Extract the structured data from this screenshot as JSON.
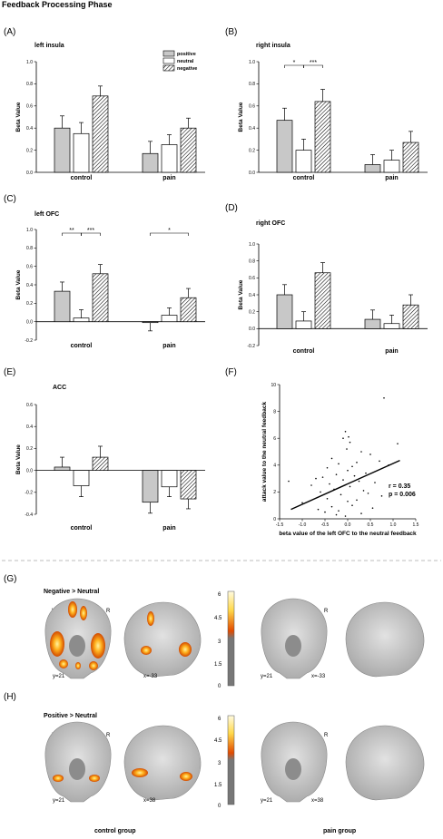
{
  "figure_title": "Feedback Processing  Phase",
  "colors": {
    "positive": "#c8c8c8",
    "neutral": "#ffffff",
    "negative": "hatched",
    "activation_low": "#d24a00",
    "activation_high": "#fff6b0"
  },
  "legend": [
    "positive",
    "neutral",
    "negative"
  ],
  "chart_data": [
    {
      "panel": "(A)",
      "type": "bar",
      "title": "left insula",
      "ylabel": "Beta Value",
      "ylim": [
        0,
        1.0
      ],
      "yticks": [
        "0.0",
        "0.2",
        "0.4",
        "0.6",
        "0.8",
        "1.0"
      ],
      "categories": [
        "control",
        "pain"
      ],
      "series": [
        {
          "name": "positive",
          "values": [
            0.4,
            0.17
          ],
          "errors": [
            0.11,
            0.11
          ]
        },
        {
          "name": "neutral",
          "values": [
            0.35,
            0.25
          ],
          "errors": [
            0.1,
            0.09
          ]
        },
        {
          "name": "negative",
          "values": [
            0.69,
            0.4
          ],
          "errors": [
            0.09,
            0.09
          ]
        }
      ],
      "significance": []
    },
    {
      "panel": "(B)",
      "type": "bar",
      "title": "right insula",
      "ylabel": "Beta Value",
      "ylim": [
        0,
        1.0
      ],
      "yticks": [
        "0.0",
        "0.2",
        "0.4",
        "0.6",
        "0.8",
        "1.0"
      ],
      "categories": [
        "control",
        "pain"
      ],
      "series": [
        {
          "name": "positive",
          "values": [
            0.47,
            0.07
          ],
          "errors": [
            0.11,
            0.09
          ]
        },
        {
          "name": "neutral",
          "values": [
            0.2,
            0.11
          ],
          "errors": [
            0.1,
            0.09
          ]
        },
        {
          "name": "negative",
          "values": [
            0.64,
            0.27
          ],
          "errors": [
            0.11,
            0.1
          ]
        }
      ],
      "significance": [
        {
          "group": 0,
          "from": 0,
          "to": 1,
          "label": "*"
        },
        {
          "group": 0,
          "from": 1,
          "to": 2,
          "label": "***"
        }
      ]
    },
    {
      "panel": "(C)",
      "type": "bar",
      "title": "left OFC",
      "ylabel": "Beta Value",
      "ylim": [
        -0.2,
        1.0
      ],
      "yticks": [
        "-0.2",
        "0.0",
        "0.2",
        "0.4",
        "0.6",
        "0.8",
        "1.0"
      ],
      "categories": [
        "control",
        "pain"
      ],
      "series": [
        {
          "name": "positive",
          "values": [
            0.33,
            -0.01
          ],
          "errors": [
            0.1,
            0.09
          ]
        },
        {
          "name": "neutral",
          "values": [
            0.04,
            0.07
          ],
          "errors": [
            0.09,
            0.08
          ]
        },
        {
          "name": "negative",
          "values": [
            0.52,
            0.26
          ],
          "errors": [
            0.1,
            0.1
          ]
        }
      ],
      "significance": [
        {
          "group": 0,
          "from": 0,
          "to": 1,
          "label": "**"
        },
        {
          "group": 0,
          "from": 1,
          "to": 2,
          "label": "***"
        },
        {
          "group": 1,
          "from": 0,
          "to": 2,
          "label": "*"
        }
      ]
    },
    {
      "panel": "(D)",
      "type": "bar",
      "title": "right OFC",
      "ylabel": "Beta Value",
      "ylim": [
        -0.2,
        1.0
      ],
      "yticks": [
        "-0.2",
        "0.0",
        "0.2",
        "0.4",
        "0.6",
        "0.8",
        "1.0"
      ],
      "categories": [
        "control",
        "pain"
      ],
      "series": [
        {
          "name": "positive",
          "values": [
            0.4,
            0.11
          ],
          "errors": [
            0.12,
            0.11
          ]
        },
        {
          "name": "neutral",
          "values": [
            0.09,
            0.06
          ],
          "errors": [
            0.11,
            0.1
          ]
        },
        {
          "name": "negative",
          "values": [
            0.66,
            0.28
          ],
          "errors": [
            0.12,
            0.12
          ]
        }
      ],
      "significance": []
    },
    {
      "panel": "(E)",
      "type": "bar",
      "title": "ACC",
      "ylabel": "Beta Value",
      "ylim": [
        -0.4,
        0.6
      ],
      "yticks": [
        "-0.4",
        "-0.2",
        "0.0",
        "0.2",
        "0.4",
        "0.6"
      ],
      "categories": [
        "control",
        "pain"
      ],
      "series": [
        {
          "name": "positive",
          "values": [
            0.03,
            -0.29
          ],
          "errors": [
            0.09,
            0.1
          ]
        },
        {
          "name": "neutral",
          "values": [
            -0.14,
            -0.15
          ],
          "errors": [
            0.1,
            0.09
          ]
        },
        {
          "name": "negative",
          "values": [
            0.12,
            -0.26
          ],
          "errors": [
            0.1,
            0.09
          ]
        }
      ],
      "significance": []
    },
    {
      "panel": "(F)",
      "type": "scatter",
      "xlabel": "beta value of the left OFC to the neutral feedback",
      "ylabel": "attack value to the neutral feedback",
      "xlim": [
        -1.5,
        1.5
      ],
      "ylim": [
        0,
        10
      ],
      "xticks": [
        "-1.5",
        "-1.0",
        "-0.5",
        "0.0",
        "0.5",
        "1.0",
        "1.5"
      ],
      "yticks": [
        "0",
        "2",
        "4",
        "6",
        "8",
        "10"
      ],
      "fit_line": {
        "from": [
          -1.25,
          0.7
        ],
        "to": [
          1.15,
          4.35
        ]
      },
      "annotation_r": "r = 0.35",
      "annotation_p": "p = 0.006",
      "points": [
        [
          0.8,
          9.0
        ],
        [
          -0.05,
          6.5
        ],
        [
          0.02,
          6.1
        ],
        [
          -0.1,
          6.0
        ],
        [
          0.05,
          5.7
        ],
        [
          -0.02,
          5.2
        ],
        [
          0.3,
          5.0
        ],
        [
          1.1,
          5.6
        ],
        [
          0.5,
          4.8
        ],
        [
          0.7,
          4.3
        ],
        [
          0.9,
          4.0
        ],
        [
          -0.35,
          4.5
        ],
        [
          -0.2,
          4.1
        ],
        [
          0.2,
          4.2
        ],
        [
          -0.45,
          3.8
        ],
        [
          0.1,
          3.9
        ],
        [
          0.0,
          3.6
        ],
        [
          -0.25,
          3.3
        ],
        [
          0.4,
          3.4
        ],
        [
          -0.7,
          3.0
        ],
        [
          -0.55,
          3.1
        ],
        [
          0.15,
          3.2
        ],
        [
          -0.1,
          2.9
        ],
        [
          0.25,
          2.8
        ],
        [
          -0.8,
          2.5
        ],
        [
          -0.4,
          2.6
        ],
        [
          0.6,
          2.7
        ],
        [
          0.05,
          2.4
        ],
        [
          -1.3,
          2.8
        ],
        [
          -0.3,
          2.2
        ],
        [
          0.35,
          2.1
        ],
        [
          -0.6,
          2.0
        ],
        [
          0.45,
          1.9
        ],
        [
          -0.15,
          1.8
        ],
        [
          0.75,
          1.7
        ],
        [
          -0.45,
          1.5
        ],
        [
          0.2,
          1.4
        ],
        [
          -1.0,
          1.2
        ],
        [
          0.1,
          1.0
        ],
        [
          -0.35,
          0.9
        ],
        [
          0.55,
          0.8
        ],
        [
          -0.2,
          0.6
        ],
        [
          -0.5,
          0.5
        ],
        [
          -0.25,
          0.3
        ],
        [
          0.3,
          0.4
        ],
        [
          -0.05,
          0.2
        ],
        [
          -0.65,
          0.7
        ],
        [
          0.0,
          1.3
        ]
      ]
    }
  ],
  "brain": {
    "panel_g": "(G)",
    "panel_h": "(H)",
    "contrast_g": "Negative > Neutral",
    "contrast_h": "Positive > Neutral",
    "left": "L",
    "right": "R",
    "coords_g": [
      "y=21",
      "x=-33",
      "y=21",
      "x=-33"
    ],
    "coords_h": [
      "y=21",
      "x=38",
      "y=21",
      "x=38"
    ],
    "colorbar_ticks": [
      "6",
      "4.5",
      "3",
      "1.5",
      "0"
    ],
    "group_control": "control group",
    "group_pain": "pain group"
  }
}
